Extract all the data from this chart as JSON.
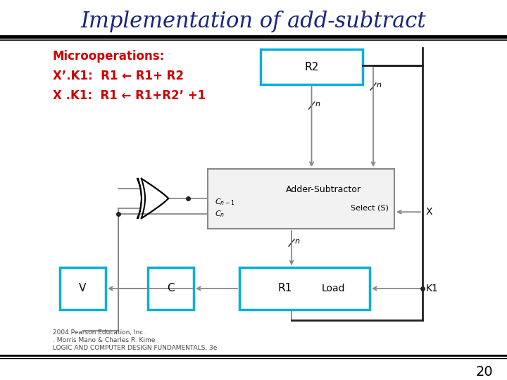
{
  "title": "Implementation of add-subtract",
  "title_color": "#1a237e",
  "title_fontsize": 22,
  "bg_color": "#ffffff",
  "line1_label": "Microoperations:",
  "line2_label": "X’.K1:  R1 ← R1+ R2",
  "line3_label": "X .K1:  R1 ← R1+R2’ +1",
  "text_color": "#cc0000",
  "text_fontsize": 12,
  "page_number": "20",
  "box_color_cyan": "#00b0d8",
  "wire_color": "#888888",
  "box_dark": "#444444",
  "footnote_lines": [
    "2004 Pearson Education, Inc.",
    ". Morris Mano & Charles R. Kime",
    "LOGIC AND COMPUTER DESIGN FUNDAMENTALS, 3e"
  ]
}
